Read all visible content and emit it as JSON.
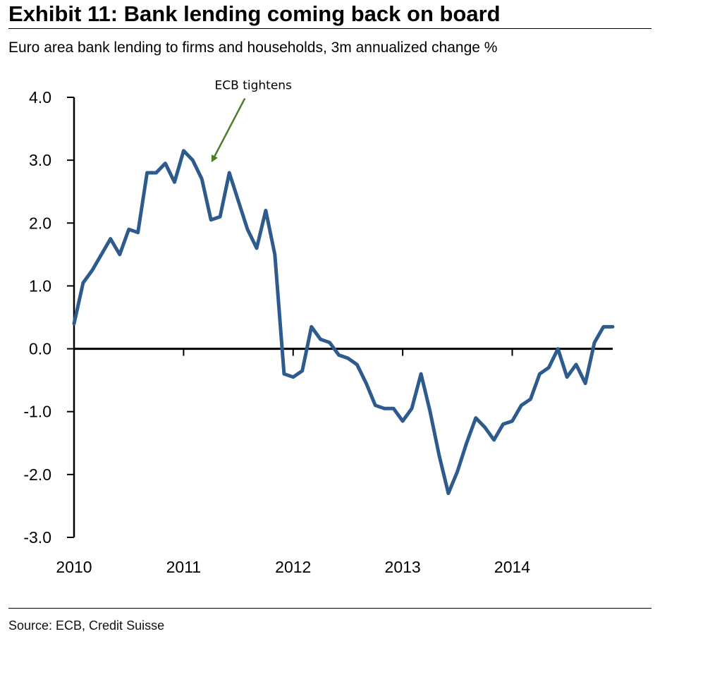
{
  "header": {
    "title": "Exhibit 11: Bank lending coming back on board",
    "subtitle": "Euro area bank lending to firms and households, 3m annualized change %"
  },
  "footer": {
    "source": "Source: ECB, Credit Suisse"
  },
  "chart_data": {
    "type": "line",
    "title": "",
    "xlabel": "",
    "ylabel": "",
    "ylim": [
      -3.0,
      4.0
    ],
    "yticks": [
      4.0,
      3.0,
      2.0,
      1.0,
      0.0,
      -1.0,
      -2.0,
      -3.0
    ],
    "ytick_labels": [
      "4.0",
      "3.0",
      "2.0",
      "1.0",
      "0.0",
      "-1.0",
      "-2.0",
      "-3.0"
    ],
    "xlim": [
      2010,
      2014.917
    ],
    "xticks": [
      2010,
      2011,
      2012,
      2013,
      2014
    ],
    "xtick_labels": [
      "2010",
      "2011",
      "2012",
      "2013",
      "2014"
    ],
    "grid": false,
    "legend": "none",
    "line_color": "#2d5b8e",
    "annotation": {
      "text": "ECB tightens",
      "arrow_to": [
        2011.25,
        2.95
      ],
      "arrow_color": "#4a7c2a"
    },
    "series": [
      {
        "x": [
          2010.0,
          2010.083,
          2010.167,
          2010.25,
          2010.333,
          2010.417,
          2010.5,
          2010.583,
          2010.667,
          2010.75,
          2010.833,
          2010.917,
          2011.0,
          2011.083,
          2011.167,
          2011.25,
          2011.333,
          2011.417,
          2011.5,
          2011.583,
          2011.667,
          2011.75,
          2011.833,
          2011.917,
          2012.0,
          2012.083,
          2012.167,
          2012.25,
          2012.333,
          2012.417,
          2012.5,
          2012.583,
          2012.667,
          2012.75,
          2012.833,
          2012.917,
          2013.0,
          2013.083,
          2013.167,
          2013.25,
          2013.333,
          2013.417,
          2013.5,
          2013.583,
          2013.667,
          2013.75,
          2013.833,
          2013.917,
          2014.0,
          2014.083,
          2014.167,
          2014.25,
          2014.333,
          2014.417,
          2014.5,
          2014.583,
          2014.667,
          2014.75,
          2014.833,
          2014.917
        ],
        "values": [
          0.4,
          1.05,
          1.25,
          1.5,
          1.75,
          1.5,
          1.9,
          1.85,
          2.8,
          2.8,
          2.95,
          2.65,
          3.15,
          3.0,
          2.7,
          2.05,
          2.1,
          2.8,
          2.35,
          1.9,
          1.6,
          2.2,
          1.5,
          -0.4,
          -0.45,
          -0.35,
          0.35,
          0.15,
          0.1,
          -0.1,
          -0.15,
          -0.25,
          -0.55,
          -0.9,
          -0.95,
          -0.95,
          -1.15,
          -0.95,
          -0.4,
          -1.0,
          -1.7,
          -2.3,
          -1.95,
          -1.5,
          -1.1,
          -1.25,
          -1.45,
          -1.2,
          -1.15,
          -0.9,
          -0.8,
          -0.4,
          -0.3,
          0.0,
          -0.45,
          -0.25,
          -0.55,
          0.1,
          0.35,
          0.35
        ]
      }
    ]
  }
}
